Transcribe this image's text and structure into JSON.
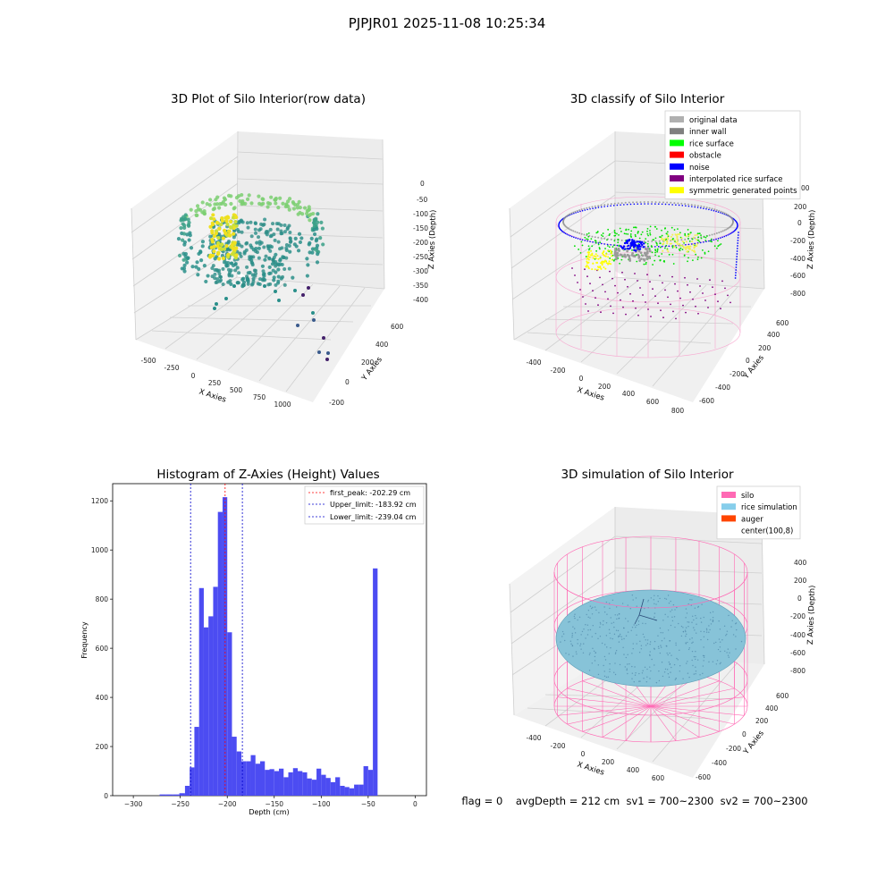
{
  "suptitle": "PJPJR01 2025-11-08 10:25:34",
  "footer": "flag = 0    avgDepth = 212 cm  sv1 = 700~2300  sv2 = 700~2300",
  "chart_data": [
    {
      "type": "scatter",
      "projection": "3d",
      "title": "3D Plot of Silo Interior(row data)",
      "xlabel": "X Axies",
      "ylabel": "Y Axies",
      "zlabel": "Z Axies (Depth)",
      "x_ticks": [
        "-500",
        "-250",
        "0",
        "250",
        "500",
        "750",
        "1000"
      ],
      "y_ticks": [
        "-200",
        "0",
        "200",
        "400",
        "600"
      ],
      "z_ticks": [
        "0",
        "-50",
        "-100",
        "-150",
        "-200",
        "-250",
        "-300",
        "-350",
        "-400"
      ],
      "colormap": "viridis",
      "colors": {
        "high": "#f0e020",
        "mid": "#2a8f8a",
        "low": "#43206a",
        "light": "#7dcf72"
      }
    },
    {
      "type": "scatter",
      "projection": "3d",
      "title": "3D classify of Silo Interior",
      "xlabel": "X Axies",
      "ylabel": "Y Axies",
      "zlabel": "Z Axies (Depth)",
      "x_ticks": [
        "-400",
        "-200",
        "0",
        "200",
        "400",
        "600",
        "800"
      ],
      "y_ticks": [
        "-600",
        "-400",
        "-200",
        "0",
        "200",
        "400",
        "600"
      ],
      "z_ticks": [
        "200",
        "0",
        "-200",
        "-400",
        "-600",
        "-800"
      ],
      "z_tick_partial": "00",
      "legend_position": "upper right",
      "legend": [
        {
          "label": "original data",
          "color": "#b0b0b0"
        },
        {
          "label": "inner wall",
          "color": "#808080"
        },
        {
          "label": "rice surface",
          "color": "#00ff00"
        },
        {
          "label": "obstacle",
          "color": "#ff0000"
        },
        {
          "label": "noise",
          "color": "#0000ff"
        },
        {
          "label": "interpolated rice surface",
          "color": "#800080"
        },
        {
          "label": "symmetric generated points",
          "color": "#ffff00"
        }
      ]
    },
    {
      "type": "bar",
      "subtype": "histogram",
      "title": "Histogram of Z-Axies (Height) Values",
      "xlabel": "Depth (cm)",
      "ylabel": "Frequency",
      "xlim": [
        -322,
        12
      ],
      "ylim": [
        0,
        1270
      ],
      "x_ticks": [
        -300,
        -250,
        -200,
        -150,
        -100,
        -50,
        0
      ],
      "y_ticks": [
        0,
        200,
        400,
        600,
        800,
        1000,
        1200
      ],
      "bar_color": "#4c4cf2",
      "bins": [
        {
          "x0": -272,
          "x1": -265,
          "y": 5
        },
        {
          "x0": -265,
          "x1": -258,
          "y": 5
        },
        {
          "x0": -258,
          "x1": -251,
          "y": 5
        },
        {
          "x0": -251,
          "x1": -245,
          "y": 10
        },
        {
          "x0": -245,
          "x1": -240,
          "y": 40
        },
        {
          "x0": -240,
          "x1": -235,
          "y": 115
        },
        {
          "x0": -235,
          "x1": -230,
          "y": 280
        },
        {
          "x0": -230,
          "x1": -225,
          "y": 845
        },
        {
          "x0": -225,
          "x1": -220,
          "y": 685
        },
        {
          "x0": -220,
          "x1": -215,
          "y": 730
        },
        {
          "x0": -215,
          "x1": -210,
          "y": 850
        },
        {
          "x0": -210,
          "x1": -205,
          "y": 1155
        },
        {
          "x0": -205,
          "x1": -200,
          "y": 1215
        },
        {
          "x0": -200,
          "x1": -195,
          "y": 665
        },
        {
          "x0": -195,
          "x1": -190,
          "y": 240
        },
        {
          "x0": -190,
          "x1": -185,
          "y": 180
        },
        {
          "x0": -185,
          "x1": -180,
          "y": 140
        },
        {
          "x0": -180,
          "x1": -175,
          "y": 140
        },
        {
          "x0": -175,
          "x1": -170,
          "y": 165
        },
        {
          "x0": -170,
          "x1": -165,
          "y": 130
        },
        {
          "x0": -165,
          "x1": -160,
          "y": 140
        },
        {
          "x0": -160,
          "x1": -155,
          "y": 105
        },
        {
          "x0": -155,
          "x1": -150,
          "y": 108
        },
        {
          "x0": -150,
          "x1": -145,
          "y": 100
        },
        {
          "x0": -145,
          "x1": -140,
          "y": 110
        },
        {
          "x0": -140,
          "x1": -135,
          "y": 75
        },
        {
          "x0": -135,
          "x1": -130,
          "y": 95
        },
        {
          "x0": -130,
          "x1": -125,
          "y": 112
        },
        {
          "x0": -125,
          "x1": -120,
          "y": 100
        },
        {
          "x0": -120,
          "x1": -115,
          "y": 95
        },
        {
          "x0": -115,
          "x1": -110,
          "y": 70
        },
        {
          "x0": -110,
          "x1": -105,
          "y": 65
        },
        {
          "x0": -105,
          "x1": -100,
          "y": 110
        },
        {
          "x0": -100,
          "x1": -95,
          "y": 85
        },
        {
          "x0": -95,
          "x1": -90,
          "y": 72
        },
        {
          "x0": -90,
          "x1": -85,
          "y": 55
        },
        {
          "x0": -85,
          "x1": -80,
          "y": 75
        },
        {
          "x0": -80,
          "x1": -75,
          "y": 40
        },
        {
          "x0": -75,
          "x1": -70,
          "y": 35
        },
        {
          "x0": -70,
          "x1": -65,
          "y": 30
        },
        {
          "x0": -65,
          "x1": -60,
          "y": 45
        },
        {
          "x0": -60,
          "x1": -55,
          "y": 45
        },
        {
          "x0": -55,
          "x1": -50,
          "y": 120
        },
        {
          "x0": -50,
          "x1": -45,
          "y": 105
        },
        {
          "x0": -45,
          "x1": -40,
          "y": 925
        },
        {
          "x0": -40,
          "x1": -35,
          "y": 0
        }
      ],
      "vlines": [
        {
          "x": -202.29,
          "color": "#ff0000",
          "label": "first_peak: -202.29 cm"
        },
        {
          "x": -183.92,
          "color": "#0000cc",
          "label": "Upper_limit: -183.92 cm"
        },
        {
          "x": -239.04,
          "color": "#0000cc",
          "label": "Lower_limit: -239.04 cm"
        }
      ],
      "legend_position": "upper right"
    },
    {
      "type": "scatter",
      "projection": "3d",
      "title": "3D simulation of Silo Interior",
      "xlabel": "X Axies",
      "ylabel": "Y Axies",
      "zlabel": "Z Axies (Depth)",
      "x_ticks": [
        "-400",
        "-200",
        "0",
        "200",
        "400",
        "600"
      ],
      "y_ticks": [
        "-600",
        "-400",
        "-200",
        "0",
        "200",
        "400",
        "600"
      ],
      "z_ticks": [
        "400",
        "200",
        "0",
        "-200",
        "-400",
        "-600",
        "-800"
      ],
      "legend_position": "upper right",
      "legend": [
        {
          "label": "silo",
          "color": "#ff69b4"
        },
        {
          "label": "rice simulation",
          "color": "#87ceeb"
        },
        {
          "label": "auger",
          "color": "#ff4500"
        },
        {
          "label": "center(100,8)",
          "color": ""
        }
      ]
    }
  ]
}
